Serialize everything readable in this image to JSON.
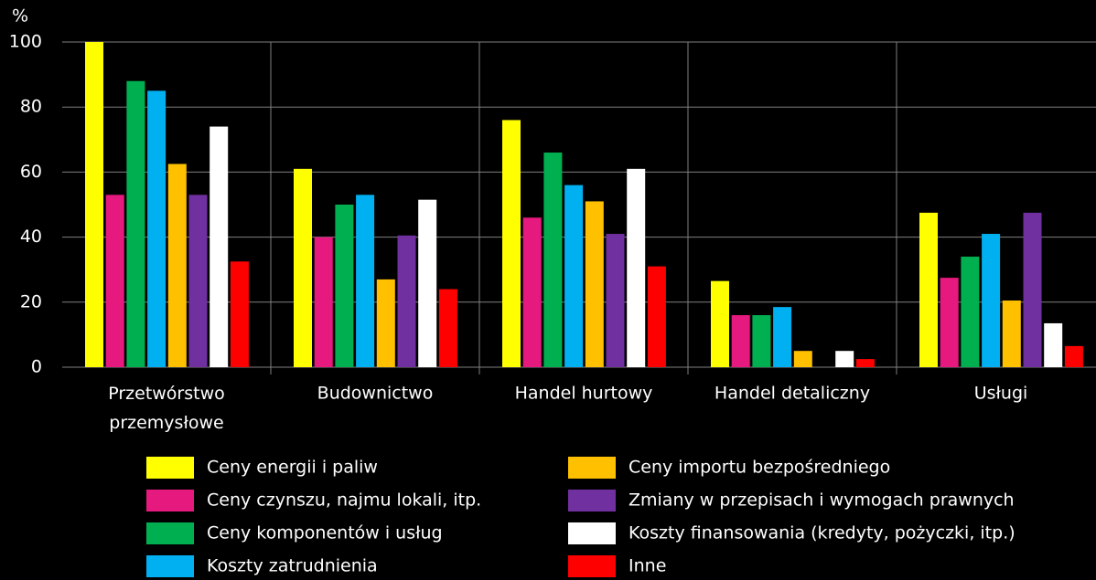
{
  "chart_data": {
    "type": "bar",
    "y_label": "%",
    "categories": [
      "Przetwórstwo przemysłowe",
      "Budownictwo",
      "Handel hurtowy",
      "Handel detaliczny",
      "Usługi"
    ],
    "series": [
      {
        "name": "Ceny energii i paliw",
        "color": "#ffff00",
        "values": [
          100,
          61,
          76,
          26.5,
          47.5
        ]
      },
      {
        "name": "Ceny czynszu, najmu lokali, itp.",
        "color": "#e6197f",
        "values": [
          53,
          40,
          46,
          16,
          27.5
        ]
      },
      {
        "name": "Ceny komponentów i usług",
        "color": "#00b050",
        "values": [
          88,
          50,
          66,
          16,
          34
        ]
      },
      {
        "name": "Koszty zatrudnienia",
        "color": "#00b0f0",
        "values": [
          85,
          53,
          56,
          18.5,
          41
        ]
      },
      {
        "name": "Ceny importu bezpośredniego",
        "color": "#ffc000",
        "values": [
          62.5,
          27,
          51,
          5,
          20.5
        ]
      },
      {
        "name": "Zmiany w przepisach i wymogach prawnych",
        "color": "#7030a0",
        "values": [
          53,
          40.5,
          41,
          0,
          47.5
        ]
      },
      {
        "name": "Koszty finansowania (kredyty, pożyczki, itp.)",
        "color": "#ffffff",
        "values": [
          74,
          51.5,
          61,
          5,
          13.5
        ]
      },
      {
        "name": "Inne",
        "color": "#ff0000",
        "values": [
          32.5,
          24,
          31,
          2.5,
          6.5
        ]
      }
    ],
    "ylim": [
      0,
      100
    ],
    "yticks": [
      0,
      20,
      40,
      60,
      80,
      100
    ],
    "grid": true
  }
}
